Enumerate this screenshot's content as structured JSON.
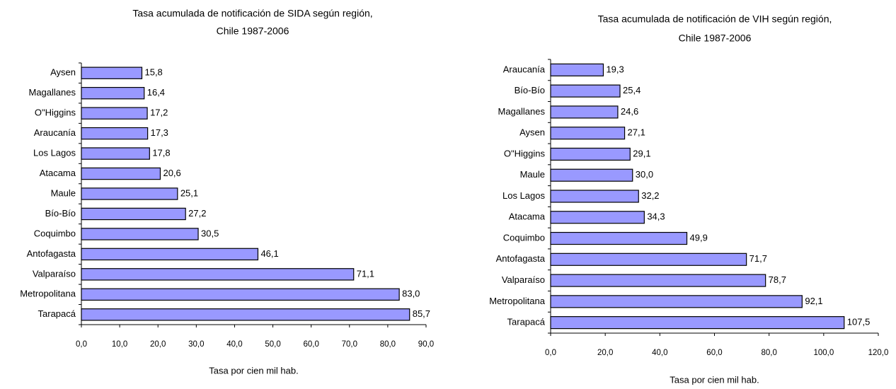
{
  "chart_data": [
    {
      "type": "bar",
      "orientation": "horizontal",
      "title": [
        "Tasa acumulada de notificación de SIDA según región,",
        "Chile 1987-2006"
      ],
      "x_label": "Tasa por cien mil hab.",
      "categories": [
        "Aysen",
        "Magallanes",
        "O\"Higgins",
        "Araucanía",
        "Los Lagos",
        "Atacama",
        "Maule",
        "Bío-Bío",
        "Coquimbo",
        "Antofagasta",
        "Valparaíso",
        "Metropolitana",
        "Tarapacá"
      ],
      "values": [
        15.8,
        16.4,
        17.2,
        17.3,
        17.8,
        20.6,
        25.1,
        27.2,
        30.5,
        46.1,
        71.1,
        83.0,
        85.7
      ],
      "value_labels": [
        "15,8",
        "16,4",
        "17,2",
        "17,3",
        "17,8",
        "20,6",
        "25,1",
        "27,2",
        "30,5",
        "46,1",
        "71,1",
        "83,0",
        "85,7"
      ],
      "color": "#9999ff",
      "xlim": [
        0,
        90
      ],
      "xticks": [
        {
          "value": 0,
          "label": "0,0"
        },
        {
          "value": 10,
          "label": "10,0"
        },
        {
          "value": 20,
          "label": "20,0"
        },
        {
          "value": 30,
          "label": "30,0"
        },
        {
          "value": 40,
          "label": "40,0"
        },
        {
          "value": 50,
          "label": "50,0"
        },
        {
          "value": 60,
          "label": "60,0"
        },
        {
          "value": 70,
          "label": "70,0"
        },
        {
          "value": 80,
          "label": "80,0"
        },
        {
          "value": 90,
          "label": "90,0"
        }
      ]
    },
    {
      "type": "bar",
      "orientation": "horizontal",
      "title": [
        "Tasa acumulada de notificación de VIH según región,",
        "Chile 1987-2006"
      ],
      "x_label": "Tasa por cien mil hab.",
      "categories": [
        "Araucanía",
        "Bío-Bío",
        "Magallanes",
        "Aysen",
        "O\"Higgins",
        "Maule",
        "Los Lagos",
        "Atacama",
        "Coquimbo",
        "Antofagasta",
        "Valparaíso",
        "Metropolitana",
        "Tarapacá"
      ],
      "values": [
        19.3,
        25.4,
        24.6,
        27.1,
        29.1,
        30.0,
        32.2,
        34.3,
        49.9,
        71.7,
        78.7,
        92.1,
        107.5
      ],
      "value_labels": [
        "19,3",
        "25,4",
        "24,6",
        "27,1",
        "29,1",
        "30,0",
        "32,2",
        "34,3",
        "49,9",
        "71,7",
        "78,7",
        "92,1",
        "107,5"
      ],
      "color": "#9999ff",
      "xlim": [
        0,
        120
      ],
      "xticks": [
        {
          "value": 0,
          "label": "0,0"
        },
        {
          "value": 20,
          "label": "20,0"
        },
        {
          "value": 40,
          "label": "40,0"
        },
        {
          "value": 60,
          "label": "60,0"
        },
        {
          "value": 80,
          "label": "80,0"
        },
        {
          "value": 100,
          "label": "100,0"
        },
        {
          "value": 120,
          "label": "120,0"
        }
      ]
    }
  ]
}
